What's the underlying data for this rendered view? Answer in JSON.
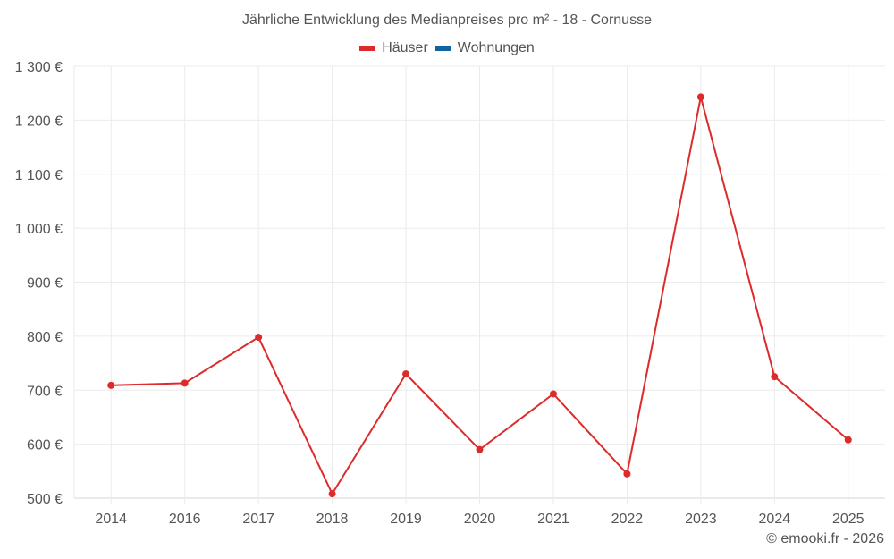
{
  "chart_title": "Jährliche Entwicklung des Medianpreises pro m² - 18 - Cornusse",
  "legend": [
    {
      "label": "Häuser",
      "color": "#dd2a2a"
    },
    {
      "label": "Wohnungen",
      "color": "#0f64a0"
    }
  ],
  "footer": "© emooki.fr - 2026",
  "chart_data": {
    "type": "line",
    "title": "Jährliche Entwicklung des Medianpreises pro m² - 18 - Cornusse",
    "xlabel": "",
    "ylabel": "",
    "categories": [
      "2014",
      "2016",
      "2017",
      "2018",
      "2019",
      "2020",
      "2021",
      "2022",
      "2023",
      "2024",
      "2025"
    ],
    "series": [
      {
        "name": "Häuser",
        "color": "#dd2a2a",
        "values": [
          709,
          713,
          798,
          508,
          730,
          590,
          693,
          545,
          1243,
          725,
          608
        ]
      },
      {
        "name": "Wohnungen",
        "color": "#0f64a0",
        "values": []
      }
    ],
    "ylim": [
      500,
      1300
    ],
    "yticks": [
      500,
      600,
      700,
      800,
      900,
      1000,
      1100,
      1200,
      1300
    ],
    "ytick_labels": [
      "500 €",
      "600 €",
      "700 €",
      "800 €",
      "900 €",
      "1 000 €",
      "1 100 €",
      "1 200 €",
      "1 300 €"
    ],
    "grid": true,
    "legend_position": "top"
  }
}
